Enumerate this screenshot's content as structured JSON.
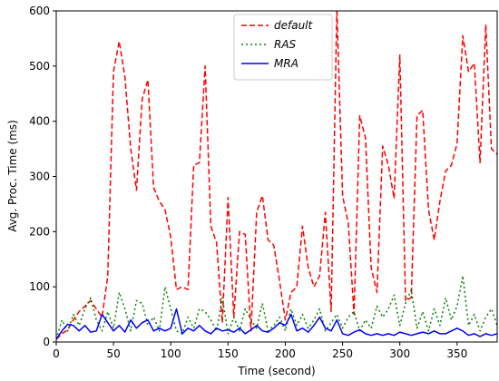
{
  "chart_data": {
    "type": "line",
    "title": "",
    "xlabel": "Time (second)",
    "ylabel": "Avg. Proc. Time (ms)",
    "xlim": [
      0,
      385
    ],
    "ylim": [
      0,
      600
    ],
    "xticks": [
      0,
      50,
      100,
      150,
      200,
      250,
      300,
      350
    ],
    "yticks": [
      0,
      100,
      200,
      300,
      400,
      500,
      600
    ],
    "grid": false,
    "legend": "top-center",
    "series": [
      {
        "name": "default",
        "color": "#ff0000",
        "dash": "dashed",
        "x": [
          0,
          5,
          10,
          15,
          20,
          25,
          30,
          35,
          40,
          45,
          50,
          55,
          60,
          65,
          70,
          75,
          80,
          85,
          90,
          95,
          100,
          105,
          110,
          115,
          120,
          125,
          130,
          135,
          140,
          145,
          150,
          155,
          160,
          165,
          170,
          175,
          180,
          185,
          190,
          195,
          200,
          205,
          210,
          215,
          220,
          225,
          230,
          235,
          240,
          245,
          250,
          255,
          260,
          265,
          270,
          275,
          280,
          285,
          290,
          295,
          300,
          305,
          310,
          315,
          320,
          325,
          330,
          335,
          340,
          345,
          350,
          355,
          360,
          365,
          370,
          375,
          380,
          385
        ],
        "y": [
          5,
          15,
          22,
          40,
          55,
          65,
          75,
          60,
          45,
          120,
          490,
          545,
          480,
          350,
          275,
          440,
          475,
          280,
          255,
          240,
          190,
          95,
          100,
          95,
          320,
          325,
          500,
          210,
          180,
          35,
          262,
          45,
          200,
          195,
          20,
          235,
          265,
          185,
          175,
          110,
          40,
          90,
          100,
          210,
          135,
          100,
          120,
          235,
          55,
          605,
          265,
          215,
          50,
          410,
          370,
          135,
          90,
          355,
          320,
          260,
          520,
          75,
          80,
          410,
          420,
          240,
          185,
          255,
          310,
          320,
          360,
          555,
          490,
          505,
          325,
          575,
          350,
          340
        ]
      },
      {
        "name": "RAS",
        "color": "#008000",
        "dash": "dotted",
        "x": [
          0,
          5,
          10,
          15,
          20,
          25,
          30,
          35,
          40,
          45,
          50,
          55,
          60,
          65,
          70,
          75,
          80,
          85,
          90,
          95,
          100,
          105,
          110,
          115,
          120,
          125,
          130,
          135,
          140,
          145,
          150,
          155,
          160,
          165,
          170,
          175,
          180,
          185,
          190,
          195,
          200,
          205,
          210,
          215,
          220,
          225,
          230,
          235,
          240,
          245,
          250,
          255,
          260,
          265,
          270,
          275,
          280,
          285,
          290,
          295,
          300,
          305,
          310,
          315,
          320,
          325,
          330,
          335,
          340,
          345,
          350,
          355,
          360,
          365,
          370,
          375,
          380,
          385
        ],
        "y": [
          5,
          40,
          20,
          50,
          30,
          60,
          80,
          40,
          20,
          55,
          25,
          90,
          60,
          20,
          75,
          70,
          30,
          45,
          20,
          100,
          60,
          20,
          15,
          45,
          25,
          60,
          55,
          40,
          20,
          80,
          15,
          45,
          20,
          60,
          40,
          25,
          70,
          20,
          30,
          45,
          20,
          60,
          30,
          50,
          25,
          40,
          60,
          20,
          35,
          50,
          25,
          45,
          55,
          20,
          40,
          25,
          65,
          45,
          60,
          85,
          30,
          70,
          95,
          25,
          55,
          20,
          60,
          30,
          80,
          40,
          65,
          120,
          30,
          50,
          20,
          45,
          60,
          30
        ]
      },
      {
        "name": "MRA",
        "color": "#0000ff",
        "dash": "solid",
        "x": [
          0,
          5,
          10,
          15,
          20,
          25,
          30,
          35,
          40,
          45,
          50,
          55,
          60,
          65,
          70,
          75,
          80,
          85,
          90,
          95,
          100,
          105,
          110,
          115,
          120,
          125,
          130,
          135,
          140,
          145,
          150,
          155,
          160,
          165,
          170,
          175,
          180,
          185,
          190,
          195,
          200,
          205,
          210,
          215,
          220,
          225,
          230,
          235,
          240,
          245,
          250,
          255,
          260,
          265,
          270,
          275,
          280,
          285,
          290,
          295,
          300,
          305,
          310,
          315,
          320,
          325,
          330,
          335,
          340,
          345,
          350,
          355,
          360,
          365,
          370,
          375,
          380,
          385
        ],
        "y": [
          5,
          20,
          32,
          30,
          20,
          30,
          18,
          20,
          50,
          35,
          20,
          30,
          18,
          40,
          25,
          35,
          40,
          20,
          25,
          20,
          25,
          60,
          15,
          25,
          20,
          30,
          20,
          15,
          25,
          20,
          22,
          18,
          25,
          15,
          22,
          30,
          20,
          18,
          25,
          35,
          30,
          50,
          20,
          25,
          18,
          30,
          45,
          25,
          20,
          40,
          15,
          12,
          18,
          22,
          15,
          12,
          15,
          12,
          15,
          12,
          18,
          15,
          12,
          15,
          18,
          15,
          20,
          15,
          15,
          20,
          25,
          20,
          12,
          15,
          10,
          15,
          12,
          15
        ]
      }
    ]
  }
}
